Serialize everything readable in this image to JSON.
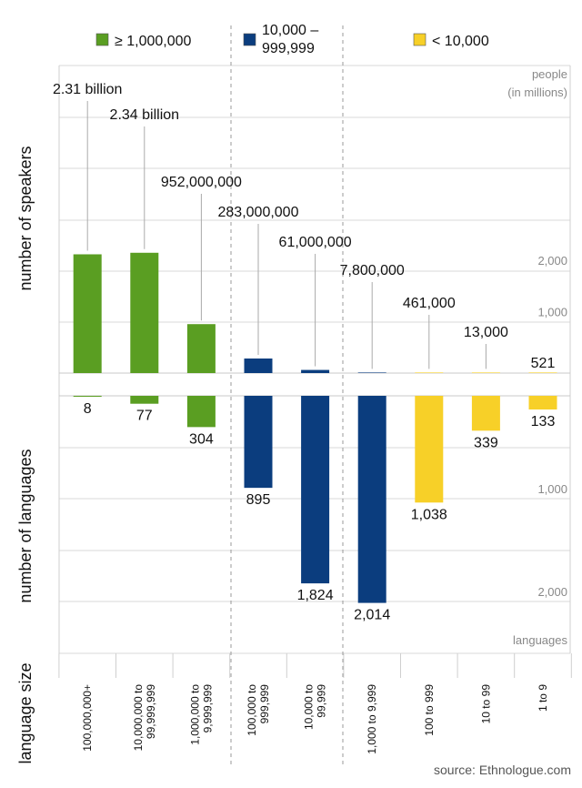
{
  "chart_data": {
    "type": "bar",
    "title": "",
    "source": "source: Ethnologue.com",
    "legend": [
      {
        "name": "≥ 1,000,000",
        "color": "#5a9e22"
      },
      {
        "name_lines": [
          "10,000 –",
          "999,999"
        ],
        "color": "#0b3d7e"
      },
      {
        "name": "< 10,000",
        "color": "#f7d028"
      }
    ],
    "xlabel": "language size",
    "categories": [
      [
        "100,000,000+"
      ],
      [
        "10,000,000 to",
        "99,999,999"
      ],
      [
        "1,000,000 to",
        "9,999,999"
      ],
      [
        "100,000 to",
        "999,999"
      ],
      [
        "10,000 to",
        "99,999"
      ],
      [
        "1,000 to 9,999"
      ],
      [
        "100 to 999"
      ],
      [
        "10 to 99"
      ],
      [
        "1 to 9"
      ]
    ],
    "groups": [
      0,
      0,
      0,
      1,
      1,
      1,
      2,
      2,
      2
    ],
    "group_colors": [
      "#5a9e22",
      "#0b3d7e",
      "#f7d028"
    ],
    "speakers": {
      "ylabel": "number of speakers",
      "unit_lines": [
        "people",
        "(in millions)"
      ],
      "ticks": [
        1000,
        2000
      ],
      "tick_labels": [
        "1,000",
        "2,000"
      ],
      "ylim": [
        0,
        3000
      ],
      "values_millions": [
        2310,
        2340,
        952,
        283,
        61,
        7.8,
        0.461,
        0.013,
        0.000521
      ],
      "labels": [
        "2.31 billion",
        "2.34 billion",
        "952,000,000",
        "283,000,000",
        "61,000,000",
        "7,800,000",
        "461,000",
        "13,000",
        "521"
      ]
    },
    "languages": {
      "ylabel": "number of languages",
      "unit": "languages",
      "ticks": [
        1000,
        2000
      ],
      "tick_labels": [
        "1,000",
        "2,000"
      ],
      "ylim": [
        0,
        2500
      ],
      "values": [
        8,
        77,
        304,
        895,
        1824,
        2014,
        1038,
        339,
        133
      ],
      "labels": [
        "8",
        "77",
        "304",
        "895",
        "1,824",
        "2,014",
        "1,038",
        "339",
        "133"
      ]
    }
  }
}
